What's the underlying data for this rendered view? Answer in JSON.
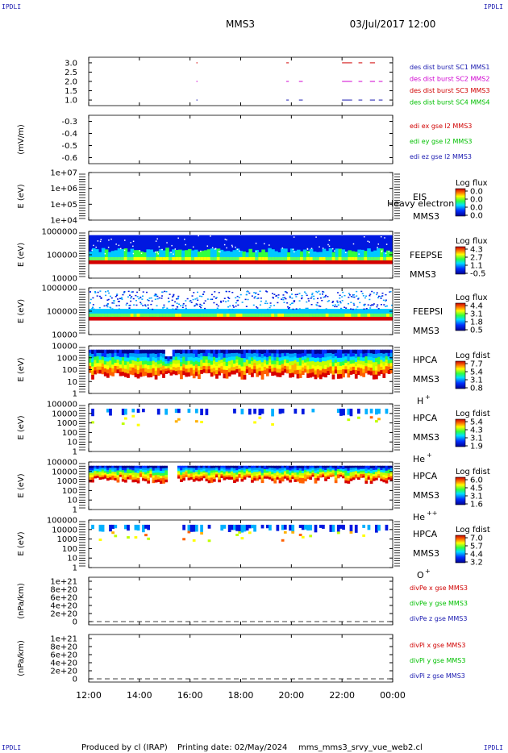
{
  "corners": [
    "IPDLI",
    "IPDLI",
    "IPDLI",
    "IPDLI"
  ],
  "header": {
    "title": "MMS3",
    "datetime": "03/Jul/2017 12:00"
  },
  "footer": {
    "producer": "Produced by cl (IRAP)",
    "printing_date": "Printing date: 02/May/2024",
    "filename": "mms_mms3_srvy_vue_web2.cl"
  },
  "chart_data": {
    "type": "heatmap",
    "x_ticks": [
      "12:00",
      "14:00",
      "16:00",
      "18:00",
      "20:00",
      "22:00",
      "00:00"
    ],
    "panels": [
      {
        "id": "burst",
        "ylabel": "",
        "yticks": [
          "3.0",
          "2.5",
          "2.0",
          "1.5",
          "1.0"
        ],
        "ylim": [
          0.7,
          3.3
        ],
        "legend": [
          {
            "text": "des dist burst SC1 MMS1",
            "color": "#1a1ab0"
          },
          {
            "text": "des dist burst SC2 MMS2",
            "color": "#d000d0"
          },
          {
            "text": "des dist burst SC3 MMS3",
            "color": "#d00000"
          },
          {
            "text": "des dist burst SC4 MMS4",
            "color": "#00c000"
          }
        ],
        "intervals": [
          {
            "level": 3.0,
            "color": "#d00000",
            "spans": [
              [
                16.25,
                16.3
              ],
              [
                19.8,
                19.9
              ],
              [
                22.0,
                22.4
              ],
              [
                22.65,
                22.8
              ],
              [
                23.1,
                23.3
              ]
            ]
          },
          {
            "level": 2.0,
            "color": "#d000d0",
            "spans": [
              [
                16.25,
                16.3
              ],
              [
                19.8,
                19.9
              ],
              [
                20.3,
                20.45
              ],
              [
                22.0,
                22.4
              ],
              [
                22.65,
                22.8
              ],
              [
                23.1,
                23.3
              ],
              [
                23.45,
                23.6
              ]
            ]
          },
          {
            "level": 1.0,
            "color": "#1a1ab0",
            "spans": [
              [
                16.25,
                16.3
              ],
              [
                19.8,
                19.9
              ],
              [
                20.3,
                20.45
              ],
              [
                22.0,
                22.4
              ],
              [
                22.65,
                22.8
              ],
              [
                23.1,
                23.3
              ],
              [
                23.45,
                23.6
              ]
            ]
          }
        ]
      },
      {
        "id": "edi",
        "ylabel": "(mV/m)",
        "yticks": [
          "-0.3",
          "-0.4",
          "-0.5",
          "-0.6"
        ],
        "ylim": [
          -0.65,
          -0.25
        ],
        "legend": [
          {
            "text": "edi ex gse l2 MMS3",
            "color": "#d00000"
          },
          {
            "text": "edi ey gse l2 MMS3",
            "color": "#00c000"
          },
          {
            "text": "edi ez gse l2 MMS3",
            "color": "#1a1ab0"
          }
        ]
      },
      {
        "id": "eis",
        "ylabel": "E (eV)",
        "yticks": [
          "1e+07",
          "1e+06",
          "1e+05",
          "1e+04"
        ],
        "label_lines": [
          "EIS",
          "MMS3"
        ],
        "overlay_text": "Heavy electron to",
        "colorbar": {
          "title": "Log flux",
          "ticks": [
            "0.0",
            "0.0",
            "0.0",
            "0.0"
          ]
        }
      },
      {
        "id": "feepse",
        "ylabel": "E (eV)",
        "yticks": [
          "1000000",
          "100000",
          "10000"
        ],
        "label_lines": [
          "FEEPSE",
          "MMS3"
        ],
        "colorbar": {
          "title": "Log flux",
          "ticks": [
            "4.3",
            "2.7",
            "1.1",
            "-0.5"
          ]
        }
      },
      {
        "id": "feepsi",
        "ylabel": "E (eV)",
        "yticks": [
          "1000000",
          "100000",
          "10000"
        ],
        "label_lines": [
          "FEEPSI",
          "MMS3"
        ],
        "colorbar": {
          "title": "Log flux",
          "ticks": [
            "4.4",
            "3.1",
            "1.8",
            "0.5"
          ]
        }
      },
      {
        "id": "hpca_h",
        "ylabel": "E (eV)",
        "yticks": [
          "10000",
          "1000",
          "100",
          "10",
          "1"
        ],
        "label_lines": [
          "HPCA",
          "MMS3"
        ],
        "species": "H",
        "charge": "+",
        "colorbar": {
          "title": "Log fdist",
          "ticks": [
            "7.7",
            "5.4",
            "3.1",
            "0.8"
          ]
        }
      },
      {
        "id": "hpca_he",
        "ylabel": "E (eV)",
        "yticks": [
          "100000",
          "10000",
          "1000",
          "100",
          "10",
          "1"
        ],
        "label_lines": [
          "HPCA",
          "MMS3"
        ],
        "species": "He",
        "charge": "+",
        "colorbar": {
          "title": "Log fdist",
          "ticks": [
            "5.4",
            "4.3",
            "3.1",
            "1.9"
          ]
        }
      },
      {
        "id": "hpca_hepp",
        "ylabel": "E (eV)",
        "yticks": [
          "100000",
          "10000",
          "1000",
          "100",
          "10",
          "1"
        ],
        "label_lines": [
          "HPCA",
          "MMS3"
        ],
        "species": "He",
        "charge": "++",
        "colorbar": {
          "title": "Log fdist",
          "ticks": [
            "6.0",
            "4.5",
            "3.1",
            "1.6"
          ]
        }
      },
      {
        "id": "hpca_o",
        "ylabel": "E (eV)",
        "yticks": [
          "100000",
          "10000",
          "1000",
          "100",
          "10",
          "1"
        ],
        "label_lines": [
          "HPCA",
          "MMS3"
        ],
        "species": "O",
        "charge": "+",
        "colorbar": {
          "title": "Log fdist",
          "ticks": [
            "7.0",
            "5.7",
            "4.4",
            "3.2"
          ]
        }
      },
      {
        "id": "divpe",
        "ylabel": "(nPa/km)",
        "yticks": [
          "1e+21",
          "8e+20",
          "6e+20",
          "4e+20",
          "2e+20",
          "0"
        ],
        "legend": [
          {
            "text": "divPe x gse MMS3",
            "color": "#d00000"
          },
          {
            "text": "divPe y gse MMS3",
            "color": "#00c000"
          },
          {
            "text": "divPe z gse MMS3",
            "color": "#1a1ab0"
          }
        ]
      },
      {
        "id": "divpi",
        "ylabel": "(nPa/km)",
        "yticks": [
          "1e+21",
          "8e+20",
          "6e+20",
          "4e+20",
          "2e+20",
          "0"
        ],
        "legend": [
          {
            "text": "divPi x gse MMS3",
            "color": "#d00000"
          },
          {
            "text": "divPi y gse MMS3",
            "color": "#00c000"
          },
          {
            "text": "divPi z gse MMS3",
            "color": "#1a1ab0"
          }
        ]
      }
    ]
  }
}
